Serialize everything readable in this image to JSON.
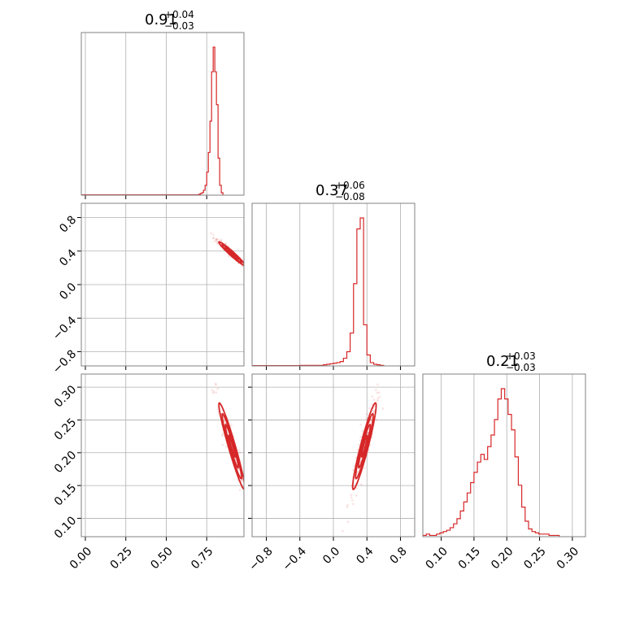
{
  "chart_data": {
    "type": "corner",
    "color": "#d62728",
    "grid": true,
    "parameters": [
      {
        "median": "0.91",
        "plus": "+0.04",
        "minus": "−0.03",
        "range": [
          -0.025,
          0.98
        ],
        "ticks": [
          0.0,
          0.25,
          0.5,
          0.75
        ],
        "tick_labels": [
          "0.00",
          "0.25",
          "0.50",
          "0.75"
        ],
        "hist": {
          "bin_start": 0.7,
          "bin_width": 0.01,
          "counts": [
            1,
            2,
            3,
            6,
            12,
            28,
            52,
            90,
            150,
            180,
            150,
            110,
            45,
            12,
            3
          ]
        }
      },
      {
        "median": "0.37",
        "plus": "+0.06",
        "minus": "−0.08",
        "range": [
          -0.97,
          0.97
        ],
        "ticks": [
          -0.8,
          -0.4,
          0.0,
          0.4,
          0.8
        ],
        "tick_labels": [
          "−0.8",
          "−0.4",
          "0.0",
          "0.4",
          "0.8"
        ],
        "hist": {
          "bin_start": -0.4,
          "bin_width": 0.04,
          "counts": [
            1,
            1,
            1,
            1,
            1,
            1,
            1,
            2,
            3,
            4,
            5,
            6,
            8,
            14,
            26,
            60,
            150,
            250,
            270,
            75,
            20,
            6,
            3,
            2,
            1
          ]
        }
      },
      {
        "median": "0.21",
        "plus": "+0.03",
        "minus": "−0.03",
        "range": [
          0.072,
          0.32
        ],
        "ticks": [
          0.1,
          0.15,
          0.2,
          0.25,
          0.3
        ],
        "tick_labels": [
          "0.10",
          "0.15",
          "0.20",
          "0.25",
          "0.30"
        ],
        "hist": {
          "bin_start": 0.072,
          "bin_width": 0.0052,
          "counts": [
            1,
            2,
            1,
            1,
            2,
            3,
            4,
            5,
            7,
            10,
            14,
            20,
            27,
            34,
            42,
            50,
            58,
            64,
            60,
            70,
            79,
            91,
            107,
            115,
            107,
            95,
            83,
            62,
            40,
            23,
            12,
            6,
            4,
            3,
            2,
            2,
            2,
            1,
            1,
            1
          ]
        }
      }
    ],
    "pairs": [
      {
        "x": 0,
        "y": 1,
        "corr": -0.97
      },
      {
        "x": 0,
        "y": 2,
        "corr": -0.96
      },
      {
        "x": 1,
        "y": 2,
        "corr": 0.94
      }
    ]
  }
}
